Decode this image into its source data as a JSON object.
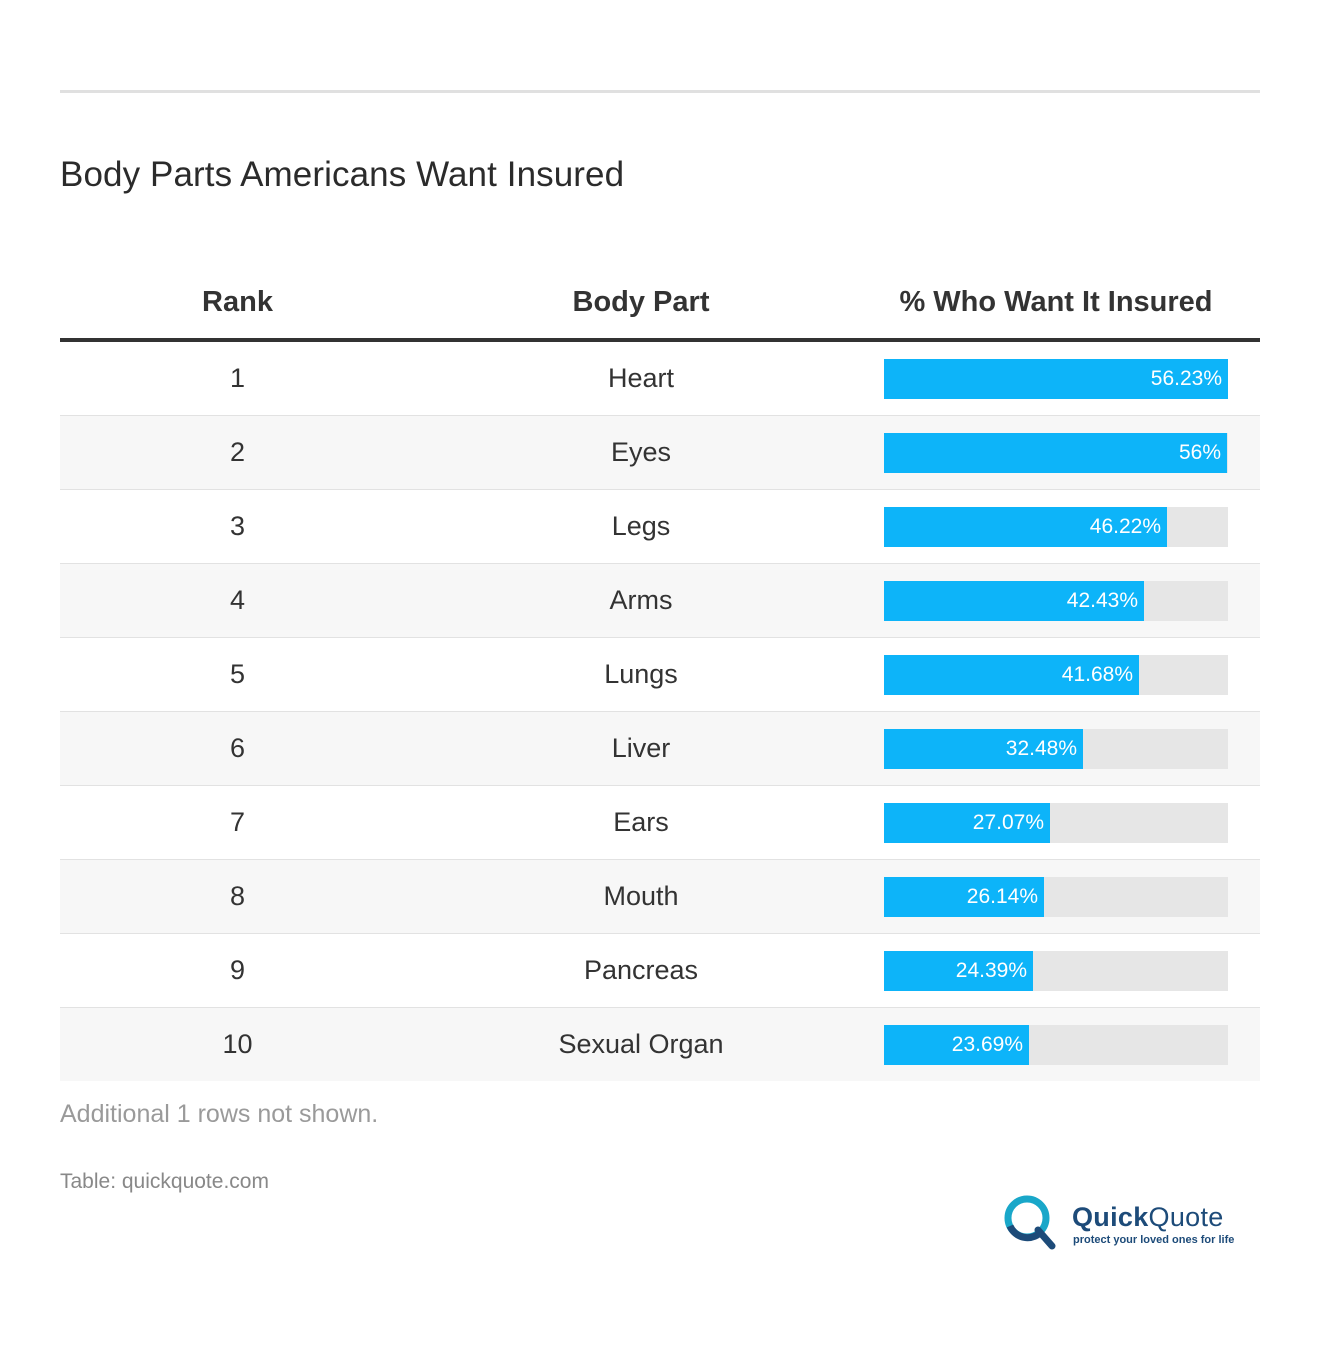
{
  "title": "Body Parts Americans Want Insured",
  "columns": {
    "rank": "Rank",
    "part": "Body Part",
    "pct": "% Who Want It Insured"
  },
  "note": "Additional 1 rows not shown.",
  "source": "Table: quickquote.com",
  "logo": {
    "name_bold": "Quick",
    "name_light": "Quote",
    "tagline": "protect your loved ones for life",
    "colors": {
      "navy": "#1d4b79",
      "teal": "#19a7c9"
    }
  },
  "colors": {
    "bar": "#0db4f9",
    "track": "#e6e6e6",
    "row_alt": "#f7f7f7"
  },
  "chart_data": {
    "type": "table",
    "title": "Body Parts Americans Want Insured",
    "columns": [
      "Rank",
      "Body Part",
      "% Who Want It Insured"
    ],
    "max": 56.23,
    "rows": [
      {
        "rank": "1",
        "part": "Heart",
        "value": 56.23,
        "label": "56.23%"
      },
      {
        "rank": "2",
        "part": "Eyes",
        "value": 56,
        "label": "56%"
      },
      {
        "rank": "3",
        "part": "Legs",
        "value": 46.22,
        "label": "46.22%"
      },
      {
        "rank": "4",
        "part": "Arms",
        "value": 42.43,
        "label": "42.43%"
      },
      {
        "rank": "5",
        "part": "Lungs",
        "value": 41.68,
        "label": "41.68%"
      },
      {
        "rank": "6",
        "part": "Liver",
        "value": 32.48,
        "label": "32.48%"
      },
      {
        "rank": "7",
        "part": "Ears",
        "value": 27.07,
        "label": "27.07%"
      },
      {
        "rank": "8",
        "part": "Mouth",
        "value": 26.14,
        "label": "26.14%"
      },
      {
        "rank": "9",
        "part": "Pancreas",
        "value": 24.39,
        "label": "24.39%"
      },
      {
        "rank": "10",
        "part": "Sexual Organ",
        "value": 23.69,
        "label": "23.69%"
      }
    ]
  }
}
